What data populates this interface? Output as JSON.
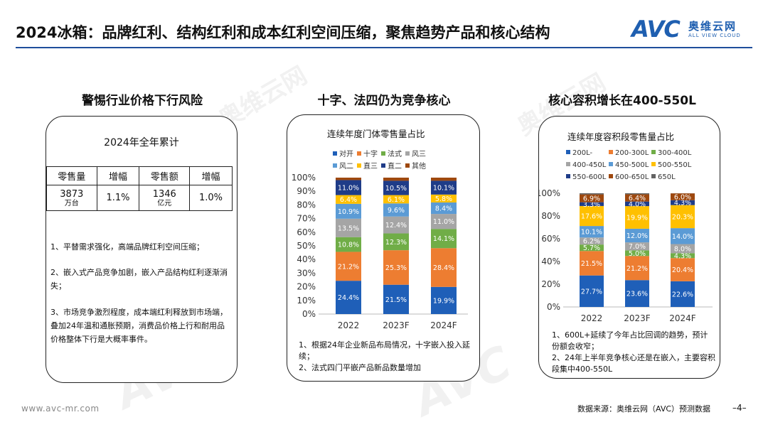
{
  "page": {
    "title": "2024冰箱：品牌红利、结构红利和成本红利空间压缩，聚焦趋势产品和核心结构",
    "logo": {
      "mark": "AVC",
      "name_cn": "奥维云网",
      "name_en": "ALL VIEW CLOUD"
    },
    "watermark": {
      "mark": "AVC",
      "name_cn": "奥维云网",
      "name_en": "ALL VIEW CLOUD"
    },
    "footer": {
      "url": "www.avc-mr.com",
      "source": "数据来源：奥维云网（AVC）预测数据",
      "page_no": "–4–"
    },
    "colors": {
      "accent": "#1f4e9c",
      "border": "#222222"
    }
  },
  "left_panel": {
    "heading": "警惕行业价格下行风险",
    "subtitle": "2024年全年累计",
    "table": {
      "headers": [
        "零售量",
        "增幅",
        "零售额",
        "增幅"
      ],
      "row": {
        "volume": "3873",
        "volume_unit": "万台",
        "volume_growth": "1.1%",
        "revenue": "1346",
        "revenue_unit": "亿元",
        "revenue_growth": "1.0%"
      }
    },
    "notes": [
      "1、平替需求强化，高端品牌红利空间压缩；",
      "2、嵌入式产品竞争加剧，嵌入产品结构红利逐渐消失；",
      "3、市场竞争激烈程度，成本端红利释放到市场端，叠加24年温和通胀预期，消费品价格上行和耐用品价格整体下行是大概率事件。"
    ]
  },
  "middle_panel": {
    "heading": "十字、法四仍为竞争核心",
    "notes": [
      "1、根据24年企业新品布局情况，十字嵌入投入延续；",
      "2、法式四门平嵌产品新品数量增加"
    ]
  },
  "right_panel": {
    "heading": "核心容积增长在400-550L",
    "notes": [
      "1、600L+延续了今年占比回调的趋势，预计份额会收窄；",
      "2、24年上半年竞争核心还是在嵌入，主要容积段集中400-550L"
    ]
  },
  "chart_data": [
    {
      "type": "bar",
      "stacked": true,
      "title": "连续年度门体零售量占比",
      "categories": [
        "2022",
        "2023F",
        "2024F"
      ],
      "y_ticks": [
        "0%",
        "10%",
        "20%",
        "30%",
        "40%",
        "50%",
        "60%",
        "70%",
        "80%",
        "90%",
        "100%"
      ],
      "ylim": [
        0,
        100
      ],
      "grid": false,
      "legend_position": "top",
      "series": [
        {
          "name": "对开",
          "color": "#1f5fb8",
          "values": [
            24.4,
            21.5,
            19.9
          ],
          "labels": [
            "24.4%",
            "21.5%",
            "19.9%"
          ]
        },
        {
          "name": "十字",
          "color": "#ed7d31",
          "values": [
            21.2,
            25.3,
            28.4
          ],
          "labels": [
            "21.2%",
            "25.3%",
            "28.4%"
          ]
        },
        {
          "name": "法式",
          "color": "#70ad47",
          "values": [
            10.8,
            12.3,
            14.1
          ],
          "labels": [
            "10.8%",
            "12.3%",
            "14.1%"
          ]
        },
        {
          "name": "风三",
          "color": "#a5a5a5",
          "values": [
            13.5,
            12.4,
            11.0
          ],
          "labels": [
            "13.5%",
            "12.4%",
            "11.0%"
          ]
        },
        {
          "name": "风二",
          "color": "#5b9bd5",
          "values": [
            10.9,
            9.6,
            8.4
          ],
          "labels": [
            "10.9%",
            "9.6%",
            "8.4%"
          ]
        },
        {
          "name": "直三",
          "color": "#ffc000",
          "values": [
            6.4,
            6.1,
            5.8
          ],
          "labels": [
            "6.4%",
            "6.1%",
            "5.8%"
          ]
        },
        {
          "name": "直二",
          "color": "#1f3c88",
          "values": [
            11.0,
            10.5,
            10.1
          ],
          "labels": [
            "11.0%",
            "10.5%",
            "10.1%"
          ]
        },
        {
          "name": "其他",
          "color": "#9e480e",
          "values": [
            1.8,
            2.3,
            2.3
          ],
          "labels": [
            "",
            "",
            ""
          ]
        }
      ]
    },
    {
      "type": "bar",
      "stacked": true,
      "title": "连续年度容积段零售量占比",
      "categories": [
        "2022",
        "2023F",
        "2024F"
      ],
      "y_ticks": [
        "0%",
        "20%",
        "40%",
        "60%",
        "80%",
        "100%"
      ],
      "ylim": [
        0,
        100
      ],
      "grid": false,
      "legend_position": "top",
      "series": [
        {
          "name": "200L-",
          "color": "#1f5fb8",
          "values": [
            27.7,
            23.6,
            22.6
          ],
          "labels": [
            "27.7%",
            "23.6%",
            "22.6%"
          ]
        },
        {
          "name": "200-300L",
          "color": "#ed7d31",
          "values": [
            21.5,
            21.2,
            20.4
          ],
          "labels": [
            "21.5%",
            "21.2%",
            "20.4%"
          ]
        },
        {
          "name": "300-400L",
          "color": "#70ad47",
          "values": [
            5.7,
            5.0,
            4.3
          ],
          "labels": [
            "5.7%",
            "5.0%",
            "4.3%"
          ]
        },
        {
          "name": "400-450L",
          "color": "#a5a5a5",
          "values": [
            6.2,
            7.0,
            8.0
          ],
          "labels": [
            "6.2%",
            "7.0%",
            "8.0%"
          ]
        },
        {
          "name": "450-500L",
          "color": "#5b9bd5",
          "values": [
            10.1,
            12.0,
            14.0
          ],
          "labels": [
            "10.1%",
            "12.0%",
            "14.0%"
          ]
        },
        {
          "name": "500-550L",
          "color": "#ffc000",
          "values": [
            17.6,
            19.9,
            20.3
          ],
          "labels": [
            "17.6%",
            "19.9%",
            "20.3%"
          ]
        },
        {
          "name": "550-600L",
          "color": "#1f3c88",
          "values": [
            3.3,
            4.0,
            4.3
          ],
          "labels": [
            "3.3%",
            "4.0%",
            "4.3%"
          ]
        },
        {
          "name": "600-650L",
          "color": "#9e480e",
          "values": [
            6.9,
            6.4,
            6.0
          ],
          "labels": [
            "6.9%",
            "6.4%",
            "6.0%"
          ]
        },
        {
          "name": "650L",
          "color": "#636363",
          "values": [
            1.0,
            0.9,
            0.1
          ],
          "labels": [
            "",
            "",
            ""
          ]
        }
      ]
    }
  ]
}
